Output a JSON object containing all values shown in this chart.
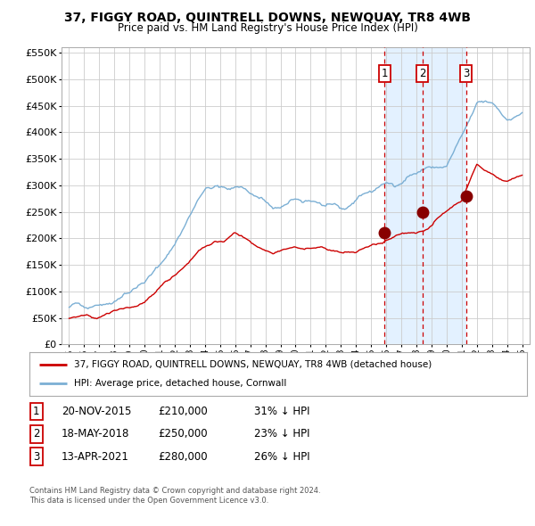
{
  "title": "37, FIGGY ROAD, QUINTRELL DOWNS, NEWQUAY, TR8 4WB",
  "subtitle": "Price paid vs. HM Land Registry's House Price Index (HPI)",
  "legend_line1": "37, FIGGY ROAD, QUINTRELL DOWNS, NEWQUAY, TR8 4WB (detached house)",
  "legend_line2": "HPI: Average price, detached house, Cornwall",
  "footer1": "Contains HM Land Registry data © Crown copyright and database right 2024.",
  "footer2": "This data is licensed under the Open Government Licence v3.0.",
  "transactions": [
    {
      "num": "1",
      "date": "20-NOV-2015",
      "price": "£210,000",
      "pct": "31% ↓ HPI",
      "year_x": 2015.9,
      "price_val": 210000
    },
    {
      "num": "2",
      "date": "18-MAY-2018",
      "price": "£250,000",
      "pct": "23% ↓ HPI",
      "year_x": 2018.4,
      "price_val": 250000
    },
    {
      "num": "3",
      "date": "13-APR-2021",
      "price": "£280,000",
      "pct": "26% ↓ HPI",
      "year_x": 2021.28,
      "price_val": 280000
    }
  ],
  "hpi_color": "#7bafd4",
  "price_color": "#cc0000",
  "dot_color": "#880000",
  "vline_color": "#cc0000",
  "shade_color": "#ddeeff",
  "grid_color": "#cccccc",
  "bg_color": "#ffffff",
  "ylim": [
    0,
    560000
  ],
  "yticks": [
    0,
    50000,
    100000,
    150000,
    200000,
    250000,
    300000,
    350000,
    400000,
    450000,
    500000,
    550000
  ],
  "xlim_start": 1994.5,
  "xlim_end": 2025.5
}
